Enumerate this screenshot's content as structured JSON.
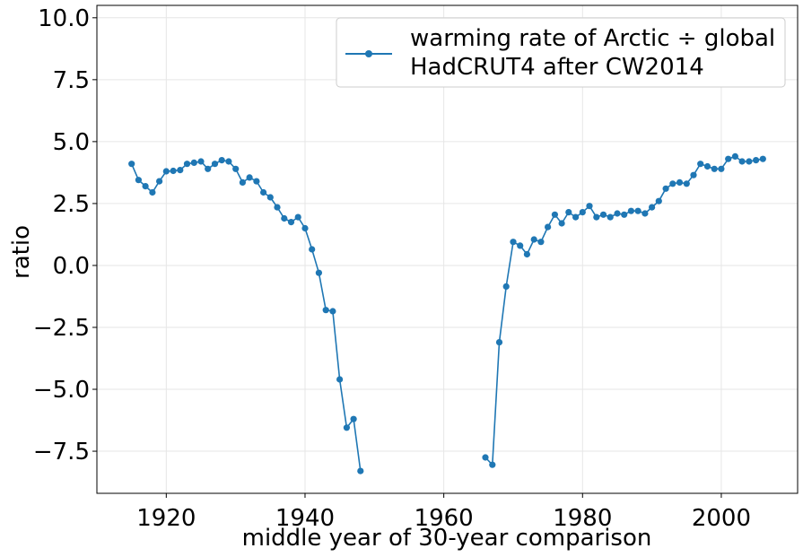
{
  "chart_data": {
    "type": "line",
    "xlabel": "middle year of 30-year comparison",
    "ylabel": "ratio",
    "xlim": [
      1910,
      2011
    ],
    "ylim": [
      -9.2,
      10.5
    ],
    "xticks": [
      1920,
      1940,
      1960,
      1980,
      2000
    ],
    "yticks": [
      10.0,
      7.5,
      5.0,
      2.5,
      0.0,
      -2.5,
      -5.0,
      -7.5
    ],
    "xtick_labels": [
      "1920",
      "1940",
      "1960",
      "1980",
      "2000"
    ],
    "ytick_labels": [
      "10.0",
      "7.5",
      "5.0",
      "2.5",
      "0.0",
      "−2.5",
      "−5.0",
      "−7.5"
    ],
    "grid": true,
    "legend_position": "top-right",
    "series": [
      {
        "name": "warming rate of Arctic ÷ global",
        "name_line2": "HadCRUT4 after CW2014",
        "color": "#1f77b4",
        "segments": [
          [
            [
              1915,
              4.1
            ],
            [
              1916,
              3.45
            ],
            [
              1917,
              3.2
            ],
            [
              1918,
              2.95
            ],
            [
              1919,
              3.4
            ],
            [
              1920,
              3.8
            ],
            [
              1921,
              3.82
            ],
            [
              1922,
              3.85
            ],
            [
              1923,
              4.1
            ],
            [
              1924,
              4.15
            ],
            [
              1925,
              4.2
            ],
            [
              1926,
              3.9
            ],
            [
              1927,
              4.1
            ],
            [
              1928,
              4.25
            ],
            [
              1929,
              4.2
            ],
            [
              1930,
              3.9
            ],
            [
              1931,
              3.35
            ],
            [
              1932,
              3.55
            ],
            [
              1933,
              3.4
            ],
            [
              1934,
              2.95
            ],
            [
              1935,
              2.75
            ],
            [
              1936,
              2.35
            ],
            [
              1937,
              1.9
            ],
            [
              1938,
              1.75
            ],
            [
              1939,
              1.95
            ],
            [
              1940,
              1.5
            ],
            [
              1941,
              0.65
            ],
            [
              1942,
              -0.3
            ],
            [
              1943,
              -1.8
            ],
            [
              1944,
              -1.85
            ],
            [
              1945,
              -4.6
            ],
            [
              1946,
              -6.55
            ],
            [
              1947,
              -6.2
            ],
            [
              1948,
              -8.3
            ]
          ],
          [
            [
              1966,
              -7.75
            ],
            [
              1967,
              -8.05
            ],
            [
              1968,
              -3.1
            ],
            [
              1969,
              -0.85
            ],
            [
              1970,
              0.95
            ],
            [
              1971,
              0.8
            ],
            [
              1972,
              0.45
            ],
            [
              1973,
              1.05
            ],
            [
              1974,
              0.95
            ],
            [
              1975,
              1.55
            ],
            [
              1976,
              2.05
            ],
            [
              1977,
              1.7
            ],
            [
              1978,
              2.15
            ],
            [
              1979,
              1.95
            ],
            [
              1980,
              2.15
            ],
            [
              1981,
              2.4
            ],
            [
              1982,
              1.95
            ],
            [
              1983,
              2.05
            ],
            [
              1984,
              1.95
            ],
            [
              1985,
              2.1
            ],
            [
              1986,
              2.05
            ],
            [
              1987,
              2.2
            ],
            [
              1988,
              2.2
            ],
            [
              1989,
              2.1
            ],
            [
              1990,
              2.35
            ],
            [
              1991,
              2.6
            ],
            [
              1992,
              3.1
            ],
            [
              1993,
              3.3
            ],
            [
              1994,
              3.35
            ],
            [
              1995,
              3.3
            ],
            [
              1996,
              3.65
            ],
            [
              1997,
              4.1
            ],
            [
              1998,
              4.0
            ],
            [
              1999,
              3.9
            ],
            [
              2000,
              3.9
            ],
            [
              2001,
              4.3
            ],
            [
              2002,
              4.4
            ],
            [
              2003,
              4.2
            ],
            [
              2004,
              4.2
            ],
            [
              2005,
              4.25
            ],
            [
              2006,
              4.3
            ]
          ]
        ]
      }
    ]
  }
}
